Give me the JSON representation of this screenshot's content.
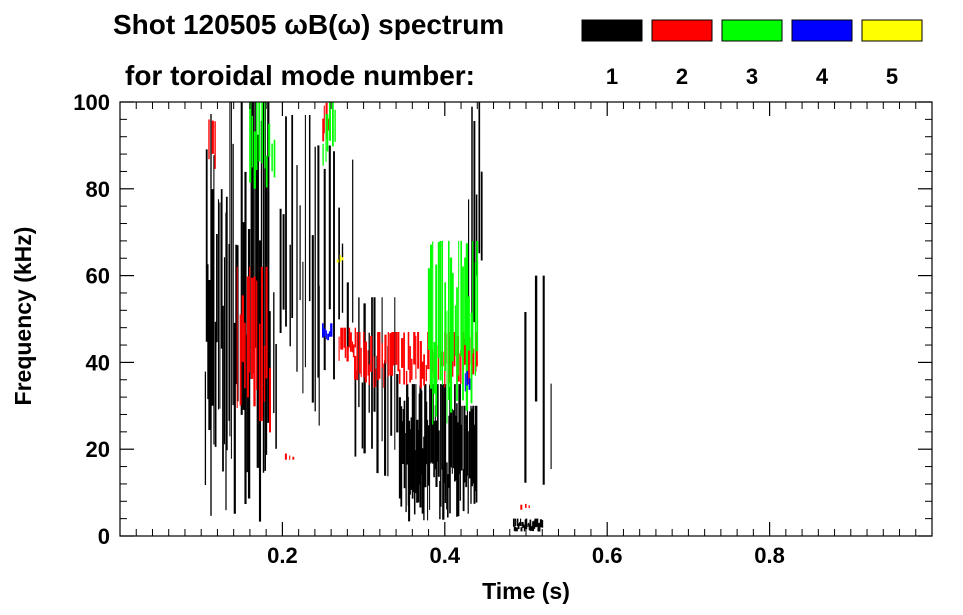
{
  "chart_data": {
    "type": "scatter",
    "title_line1": "Shot 120505 ωB(ω) spectrum",
    "title_line2": "for toroidal mode number:",
    "xlabel": "Time (s)",
    "ylabel": "Frequency (kHz)",
    "xlim": [
      0.0,
      1.0
    ],
    "ylim": [
      0,
      100
    ],
    "x_ticks": [
      0.2,
      0.4,
      0.6,
      0.8
    ],
    "x_tick_labels": [
      "0.2",
      "0.4",
      "0.6",
      "0.8"
    ],
    "y_ticks": [
      0,
      20,
      40,
      60,
      80,
      100
    ],
    "y_tick_labels": [
      "0",
      "20",
      "40",
      "60",
      "80",
      "100"
    ],
    "grid": false,
    "legend_position": "top-right",
    "series": [
      {
        "name": "1",
        "color": "#000000",
        "strands": [
          {
            "t0": 0.105,
            "t1": 0.145,
            "f0": 2,
            "f1": 100,
            "step": 0.0018
          },
          {
            "t0": 0.15,
            "t1": 0.185,
            "f0": 2,
            "f1": 100,
            "step": 0.0022
          },
          {
            "t0": 0.185,
            "t1": 0.245,
            "f0": 20,
            "f1": 97,
            "step": 0.004
          },
          {
            "t0": 0.245,
            "t1": 0.29,
            "f0": 30,
            "f1": 90,
            "step": 0.006
          },
          {
            "t0": 0.29,
            "t1": 0.345,
            "f0": 10,
            "f1": 55,
            "step": 0.004
          },
          {
            "t0": 0.345,
            "t1": 0.42,
            "f0": 3,
            "f1": 35,
            "step": 0.0014
          },
          {
            "t0": 0.42,
            "t1": 0.44,
            "f0": 5,
            "f1": 30,
            "step": 0.0015
          },
          {
            "t0": 0.43,
            "t1": 0.445,
            "f0": 40,
            "f1": 100,
            "step": 0.003
          },
          {
            "t0": 0.485,
            "t1": 0.52,
            "f0": 1,
            "f1": 4,
            "step": 0.0012
          },
          {
            "t0": 0.5,
            "t1": 0.53,
            "f0": 8,
            "f1": 60,
            "step": 0.01
          }
        ]
      },
      {
        "name": "2",
        "color": "#ff0000",
        "strands": [
          {
            "t0": 0.11,
            "t1": 0.12,
            "f0": 82,
            "f1": 96,
            "step": 0.004
          },
          {
            "t0": 0.145,
            "t1": 0.185,
            "f0": 23,
            "f1": 62,
            "step": 0.003
          },
          {
            "t0": 0.25,
            "t1": 0.258,
            "f0": 90,
            "f1": 100,
            "step": 0.002
          },
          {
            "t0": 0.27,
            "t1": 0.29,
            "f0": 40,
            "f1": 48,
            "step": 0.002
          },
          {
            "t0": 0.29,
            "t1": 0.44,
            "f0": 34,
            "f1": 47,
            "step": 0.0025
          },
          {
            "t0": 0.205,
            "t1": 0.215,
            "f0": 17,
            "f1": 19,
            "step": 0.004
          },
          {
            "t0": 0.495,
            "t1": 0.505,
            "f0": 6,
            "f1": 8,
            "step": 0.004
          }
        ]
      },
      {
        "name": "3",
        "color": "#00ff00",
        "strands": [
          {
            "t0": 0.16,
            "t1": 0.19,
            "f0": 80,
            "f1": 100,
            "step": 0.003
          },
          {
            "t0": 0.25,
            "t1": 0.265,
            "f0": 85,
            "f1": 100,
            "step": 0.003
          },
          {
            "t0": 0.38,
            "t1": 0.44,
            "f0": 25,
            "f1": 68,
            "step": 0.0025
          }
        ]
      },
      {
        "name": "4",
        "color": "#0000ff",
        "strands": [
          {
            "t0": 0.25,
            "t1": 0.26,
            "f0": 45,
            "f1": 49,
            "step": 0.002
          },
          {
            "t0": 0.425,
            "t1": 0.432,
            "f0": 33,
            "f1": 38,
            "step": 0.003
          }
        ]
      },
      {
        "name": "5",
        "color": "#ffff00",
        "strands": [
          {
            "t0": 0.268,
            "t1": 0.274,
            "f0": 63,
            "f1": 65,
            "step": 0.003
          }
        ]
      }
    ]
  }
}
